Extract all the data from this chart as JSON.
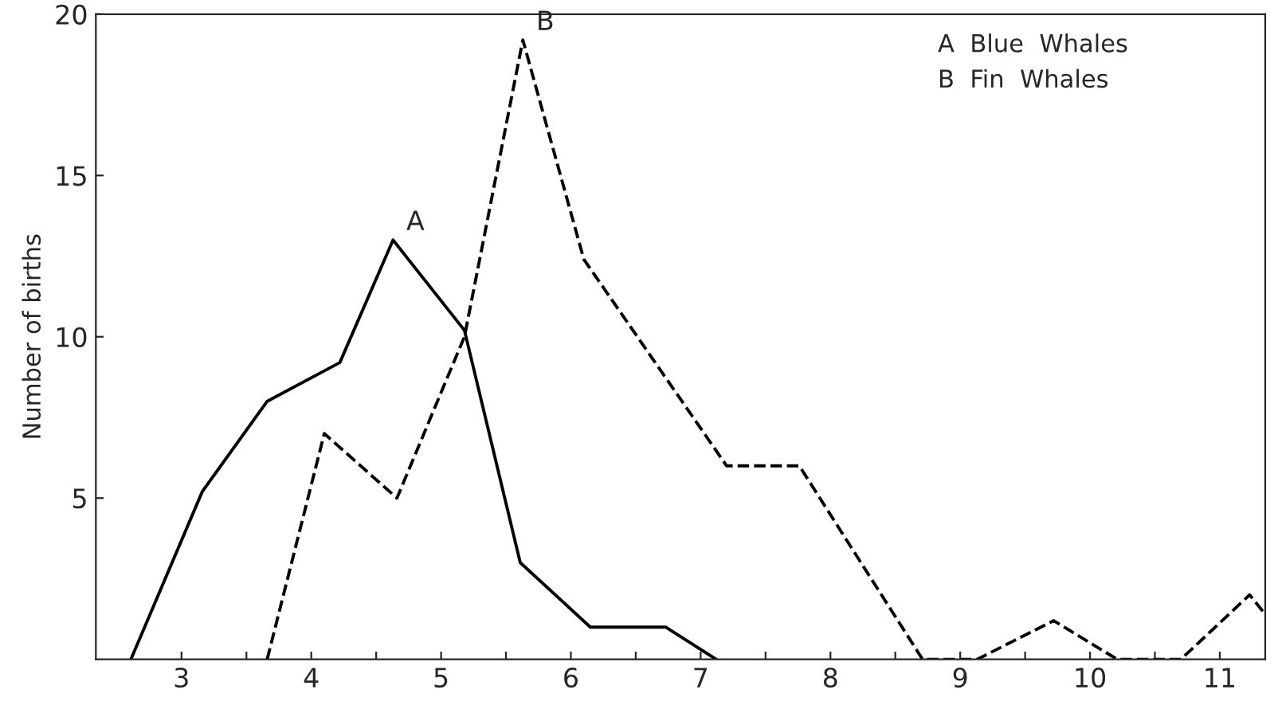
{
  "chart_data": {
    "type": "line",
    "ylabel": "Number of births",
    "xlim": [
      2.34,
      11.35
    ],
    "ylim": [
      0,
      20
    ],
    "xticks": [
      3,
      4,
      5,
      6,
      7,
      8,
      9,
      10,
      11,
      {
        "value": 3.5,
        "label": null
      },
      {
        "value": 4.5,
        "label": null
      },
      {
        "value": 5.5,
        "label": null
      },
      {
        "value": 6.5,
        "label": null
      },
      {
        "value": 7.5,
        "label": null
      },
      {
        "value": 8.5,
        "label": null
      },
      {
        "value": 9.5,
        "label": null
      },
      {
        "value": 10.5,
        "label": null
      }
    ],
    "yticks": [
      5,
      10,
      15,
      20
    ],
    "grid": false,
    "legend": false,
    "series": [
      {
        "color": "#000000",
        "line_style": "solid",
        "x": [
          2.61,
          3.16,
          3.66,
          4.22,
          4.63,
          5.18,
          5.61,
          6.15,
          6.73,
          7.12
        ],
        "values": [
          0,
          5.2,
          8,
          9.2,
          13,
          10.2,
          3,
          1,
          1,
          0
        ]
      },
      {
        "color": "#000000",
        "line_style": "dashed",
        "x": [
          3.66,
          4.1,
          4.66,
          5.18,
          5.63,
          6.1,
          7.2,
          7.76,
          8.71,
          9.13,
          9.72,
          10.21,
          10.7,
          11.23,
          11.35
        ],
        "values": [
          0,
          7,
          5,
          10,
          19.2,
          12.4,
          6,
          6,
          0,
          0,
          1.2,
          0,
          0,
          2,
          1.4
        ]
      }
    ],
    "annotations": [
      {
        "text": "A",
        "x": 4.63,
        "y": 13
      },
      {
        "text": "B",
        "x": 5.63,
        "y": 19.2
      },
      "A  Blue  Whales",
      "B  Fin  Whales"
    ]
  }
}
